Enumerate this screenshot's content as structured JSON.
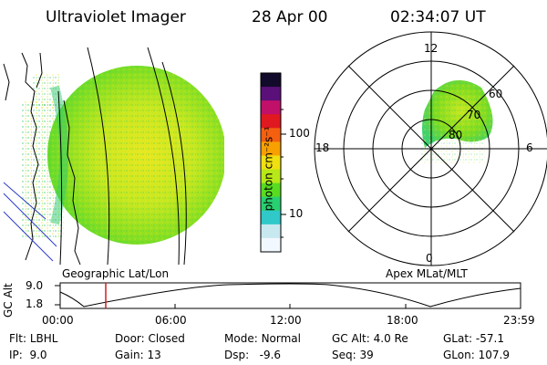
{
  "header": {
    "title": "Ultraviolet Imager",
    "date": "28 Apr 00",
    "time": "02:34:07 UT"
  },
  "left_panel": {
    "caption": "Geographic Lat/Lon"
  },
  "colorbar": {
    "label": "photon cm⁻²s⁻¹",
    "ticks": [
      "100",
      "10"
    ],
    "colors": [
      "#120a2a",
      "#5a1078",
      "#c0106a",
      "#e01820",
      "#f46010",
      "#f8a000",
      "#f0e010",
      "#b8e818",
      "#58dc20",
      "#28d070",
      "#30c8c8",
      "#c8e8f0",
      "#f2f8ff"
    ]
  },
  "polar_panel": {
    "caption": "Apex MLat/MLT",
    "mlt_labels": {
      "top": "12",
      "left": "18",
      "right": "6",
      "bottom": "0"
    },
    "mlat_labels": [
      "60",
      "70",
      "80"
    ]
  },
  "altitude_plot": {
    "ylabel": "GC Alt",
    "yticks": [
      "9.0",
      "1.8"
    ],
    "xticks": [
      "00:00",
      "06:00",
      "12:00",
      "18:00",
      "23:59"
    ],
    "current_marker_time": "02:34",
    "marker_color": "#cc2020"
  },
  "info": {
    "row1": [
      {
        "label": "Flt:",
        "value": "LBHL"
      },
      {
        "label": "Door:",
        "value": "Closed"
      },
      {
        "label": "Mode:",
        "value": "Normal"
      },
      {
        "label": "GC Alt:",
        "value": "4.0 Re"
      },
      {
        "label": "GLat:",
        "value": "-57.1"
      }
    ],
    "row2": [
      {
        "label": "IP:",
        "value": "9.0"
      },
      {
        "label": "Gain:",
        "value": "13"
      },
      {
        "label": "Dsp:",
        "value": "-9.6"
      },
      {
        "label": "Seq:",
        "value": "39"
      },
      {
        "label": "GLon:",
        "value": "107.9"
      }
    ]
  }
}
